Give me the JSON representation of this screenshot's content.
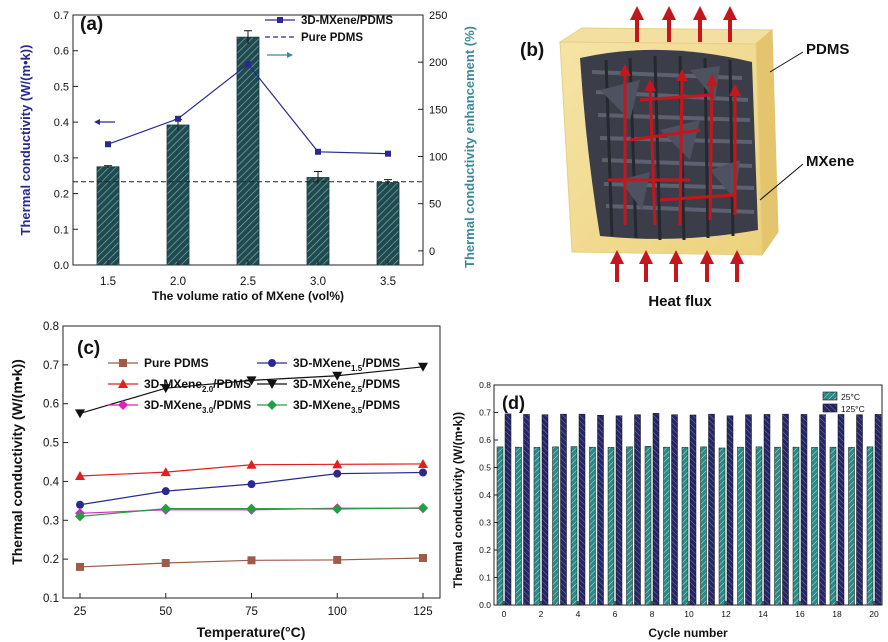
{
  "chart_data": [
    {
      "panel": "(a)",
      "type": "bar",
      "categories": [
        "1.5",
        "2.0",
        "2.5",
        "3.0",
        "3.5"
      ],
      "series": [
        {
          "name": "3D-MXene/PDMS",
          "kind": "bar",
          "axis": "left",
          "values": [
            0.275,
            0.392,
            0.638,
            0.245,
            0.231
          ],
          "errors": [
            0.003,
            0.015,
            0.018,
            0.017,
            0.008
          ]
        },
        {
          "name": "3D-MXene/PDMS",
          "kind": "line",
          "axis": "right",
          "values": [
            113,
            140,
            198,
            105,
            103
          ]
        },
        {
          "name": "Pure PDMS",
          "kind": "reference-line",
          "axis": "left",
          "value": 0.233
        }
      ],
      "xlabel": "The volume ratio of MXene (vol%)",
      "ylabel": "Thermal conductivity (W/(m•k))",
      "ylabel_right": "Thermal conductivity enhancement (%)",
      "ylim": [
        0,
        0.7
      ],
      "ylim_right": [
        -15,
        250
      ],
      "yticks": [
        "0.0",
        "0.1",
        "0.2",
        "0.3",
        "0.4",
        "0.5",
        "0.6",
        "0.7"
      ],
      "yticks_right": [
        "0",
        "50",
        "100",
        "150",
        "200",
        "250"
      ],
      "legend": [
        "3D-MXene/PDMS",
        "Pure PDMS"
      ]
    },
    {
      "panel": "(c)",
      "type": "line",
      "x": [
        25,
        50,
        75,
        100,
        125
      ],
      "series": [
        {
          "name": "Pure PDMS",
          "values": [
            0.18,
            0.19,
            0.197,
            0.198,
            0.203
          ],
          "color": "#9e5a4b"
        },
        {
          "name": "3D-MXene1.5/PDMS",
          "values": [
            0.34,
            0.375,
            0.393,
            0.42,
            0.423
          ],
          "color": "#2a2a8e"
        },
        {
          "name": "3D-MXene2.0/PDMS",
          "values": [
            0.414,
            0.424,
            0.443,
            0.444,
            0.445
          ],
          "color": "#e02020"
        },
        {
          "name": "3D-MXene2.5/PDMS",
          "values": [
            0.575,
            0.64,
            0.66,
            0.672,
            0.695
          ],
          "color": "#111111"
        },
        {
          "name": "3D-MXene3.0/PDMS",
          "values": [
            0.318,
            0.327,
            0.327,
            0.331,
            0.331
          ],
          "color": "#e020c0"
        },
        {
          "name": "3D-MXene3.5/PDMS",
          "values": [
            0.31,
            0.33,
            0.33,
            0.329,
            0.332
          ],
          "color": "#20a040"
        }
      ],
      "legend_labels": [
        {
          "pre": "Pure PDMS",
          "sub": "",
          "post": ""
        },
        {
          "pre": "3D-MXene",
          "sub": "1.5",
          "post": "/PDMS"
        },
        {
          "pre": "3D-MXene",
          "sub": "2.0",
          "post": "/PDMS"
        },
        {
          "pre": "3D-MXene",
          "sub": "2.5",
          "post": "/PDMS"
        },
        {
          "pre": "3D-MXene",
          "sub": "3.0",
          "post": "/PDMS"
        },
        {
          "pre": "3D-MXene",
          "sub": "3.5",
          "post": "/PDMS"
        }
      ],
      "xlabel": "Temperature(°C)",
      "ylabel": "Thermal conductivity (W/(m•k))",
      "xlim": [
        25,
        125
      ],
      "ylim": [
        0.1,
        0.8
      ],
      "xticks": [
        "25",
        "50",
        "75",
        "100",
        "125"
      ],
      "yticks": [
        "0.1",
        "0.2",
        "0.3",
        "0.4",
        "0.5",
        "0.6",
        "0.7",
        "0.8"
      ]
    },
    {
      "panel": "(d)",
      "type": "bar",
      "categories": [
        "0",
        "1",
        "2",
        "3",
        "4",
        "5",
        "6",
        "7",
        "8",
        "9",
        "10",
        "11",
        "12",
        "13",
        "14",
        "15",
        "16",
        "17",
        "18",
        "19",
        "20"
      ],
      "series": [
        {
          "name": "25°C",
          "values": [
            0.575,
            0.574,
            0.573,
            0.575,
            0.576,
            0.574,
            0.573,
            0.575,
            0.577,
            0.574,
            0.573,
            0.575,
            0.571,
            0.574,
            0.575,
            0.574,
            0.574,
            0.573,
            0.574,
            0.573,
            0.575
          ],
          "color": "#2a8a86"
        },
        {
          "name": "125°C",
          "values": [
            0.695,
            0.693,
            0.692,
            0.694,
            0.694,
            0.69,
            0.688,
            0.692,
            0.697,
            0.692,
            0.691,
            0.694,
            0.688,
            0.692,
            0.693,
            0.694,
            0.693,
            0.692,
            0.693,
            0.692,
            0.693
          ],
          "color": "#262666"
        }
      ],
      "xlabel": "Cycle number",
      "ylabel": "Thermal conductivity (W/(m•k))",
      "ylim": [
        0,
        0.8
      ],
      "xticks": [
        "0",
        "2",
        "4",
        "6",
        "8",
        "10",
        "12",
        "14",
        "16",
        "18",
        "20"
      ],
      "yticks": [
        "0.0",
        "0.1",
        "0.2",
        "0.3",
        "0.4",
        "0.5",
        "0.6",
        "0.7",
        "0.8"
      ],
      "legend": [
        "25°C",
        "125°C"
      ]
    }
  ],
  "panel_b": {
    "label": "(b)",
    "pdms_label": "PDMS",
    "mxene_label": "MXene",
    "flux_label": "Heat flux"
  }
}
